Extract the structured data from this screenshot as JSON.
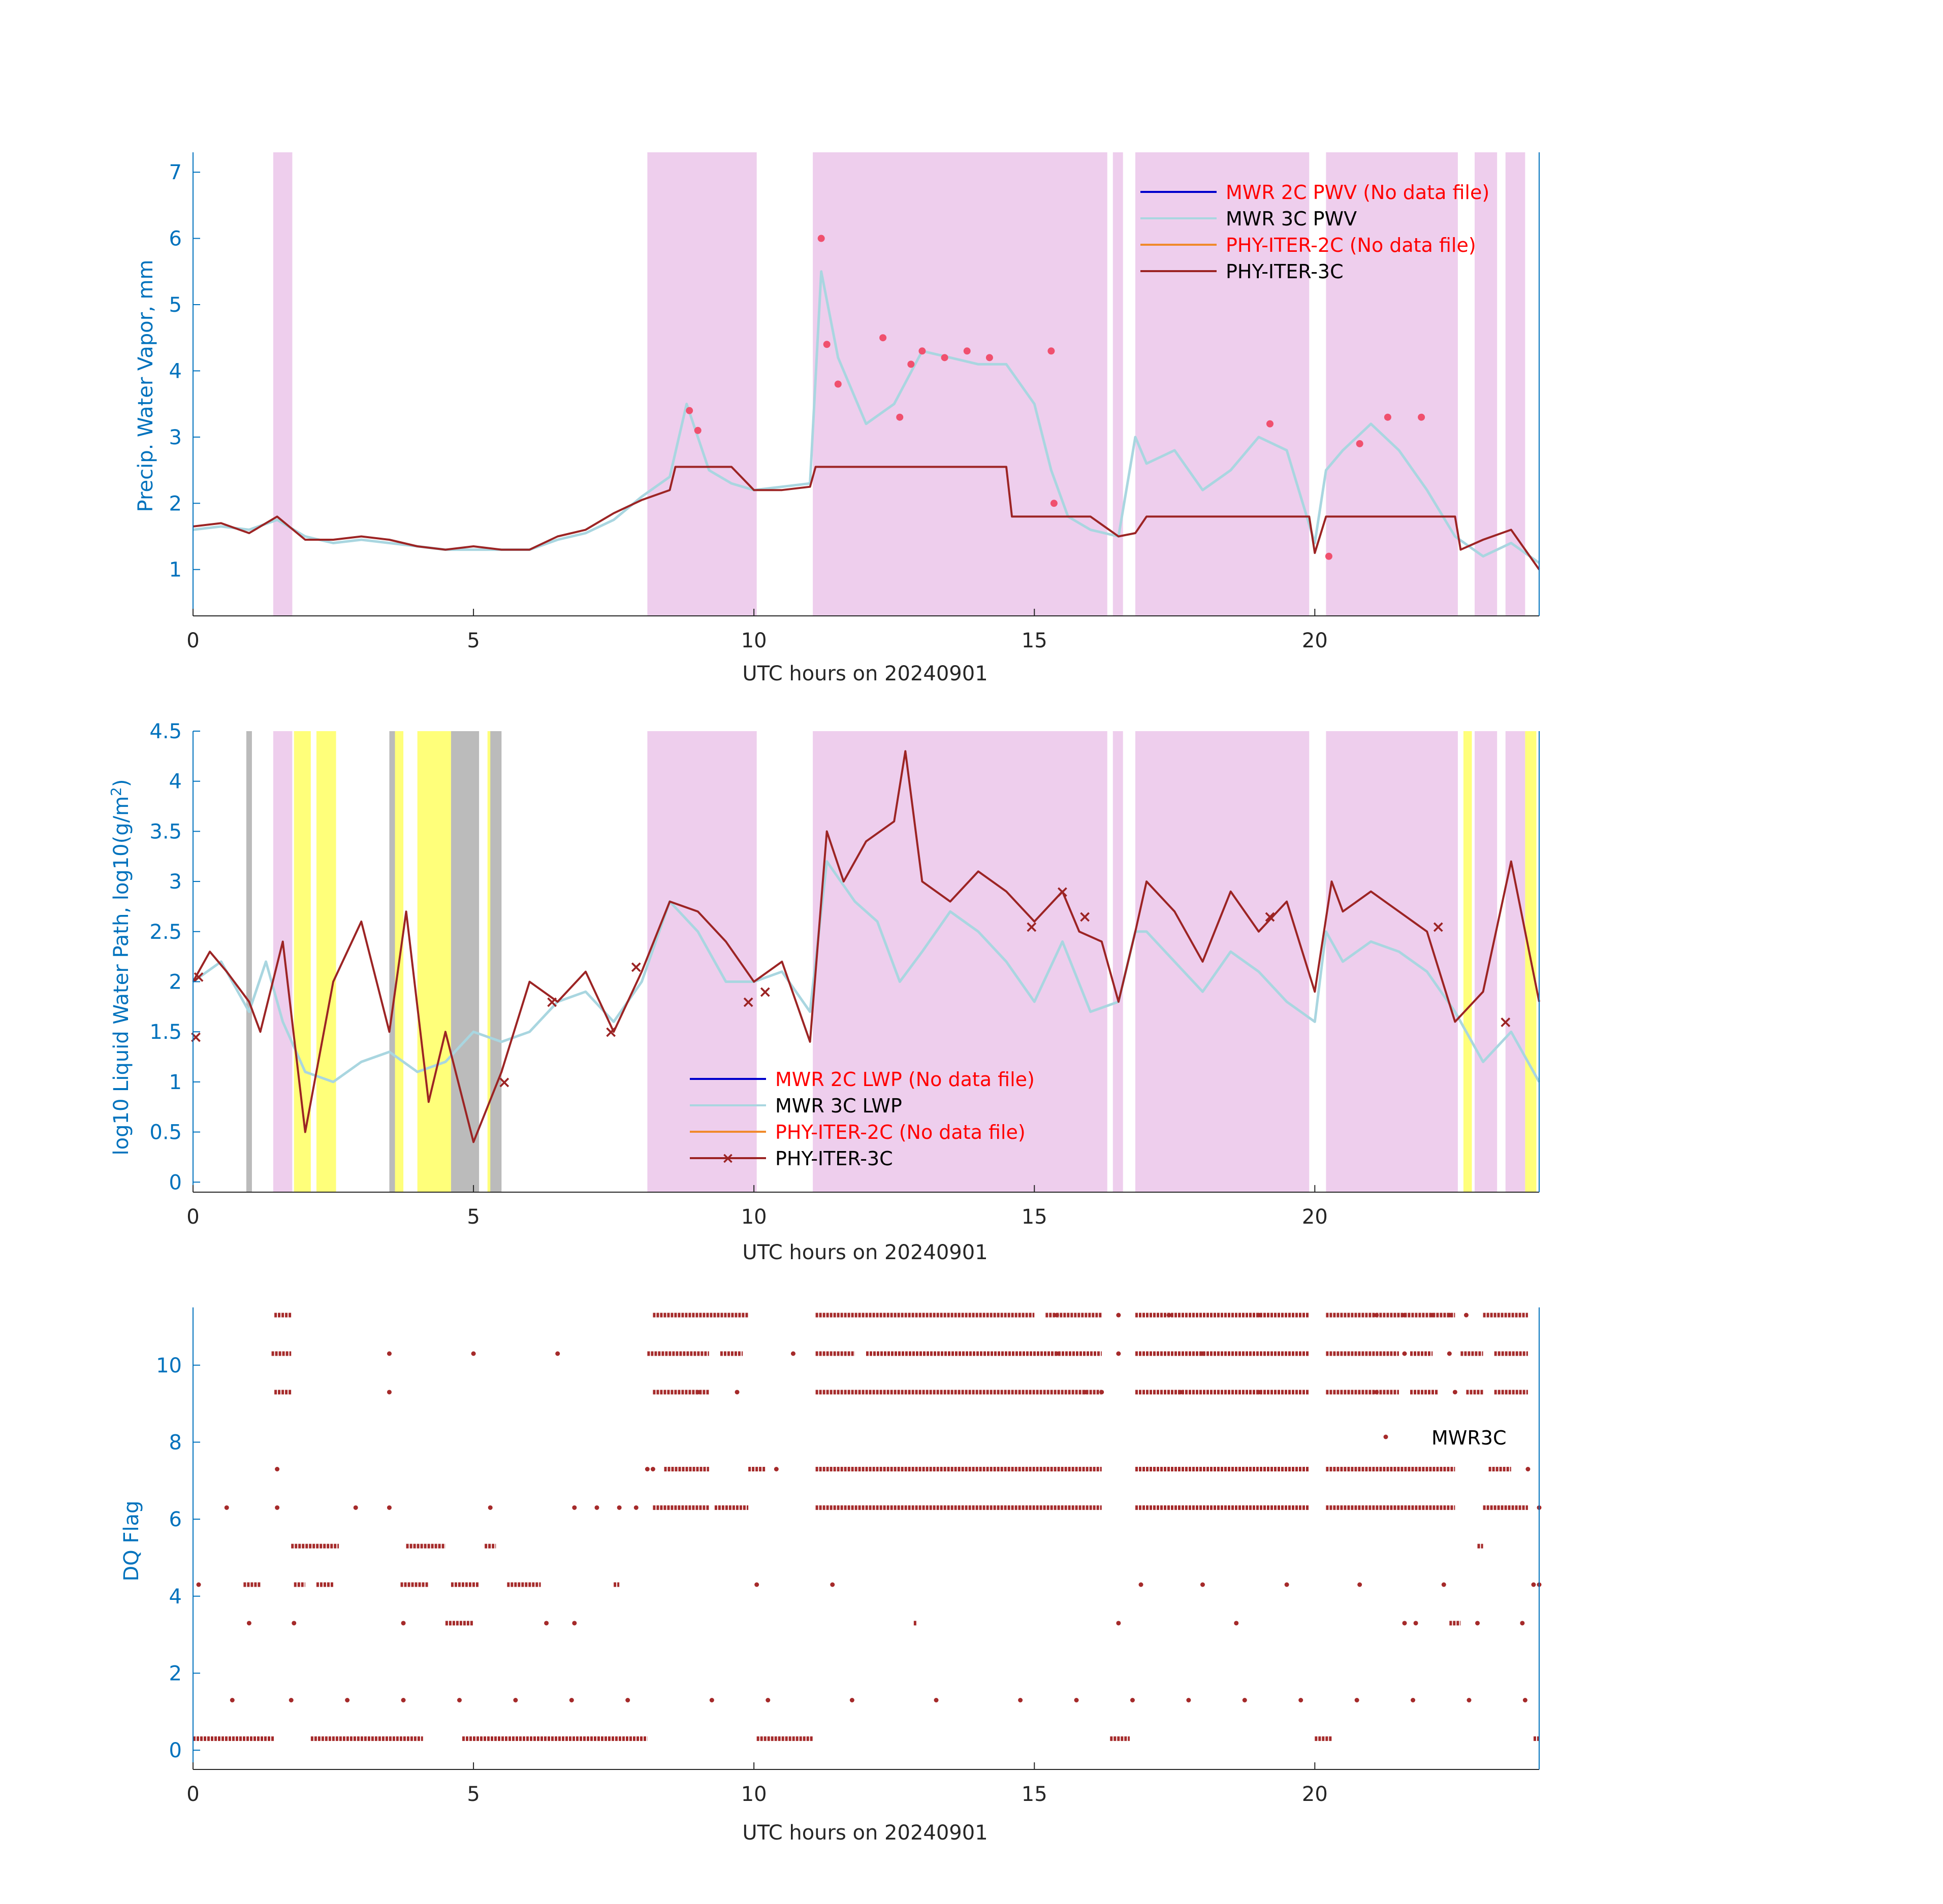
{
  "colors": {
    "axis": "#0072BD",
    "axis_black": "#262626",
    "shade_pink": "#eeceed",
    "shade_yellow": "#ffff7a",
    "shade_gray": "#bbbbbb",
    "mwr2c": "#0000cc",
    "mwr3c": "#a9d6e0",
    "phy2c": "#f08a2c",
    "phy3c": "#9c2424",
    "flag_red": "#f0506e",
    "nofile_red": "#ff0000",
    "dq": "#a52a2a"
  },
  "chart_data": [
    {
      "id": "pwv",
      "type": "line",
      "xlabel": "UTC hours on 20240901",
      "ylabel": "Precip. Water Vapor, mm",
      "xlim": [
        0,
        24
      ],
      "ylim": [
        0.3,
        7.3
      ],
      "xticks": [
        0,
        5,
        10,
        15,
        20
      ],
      "yticks": [
        1,
        2,
        3,
        4,
        5,
        6,
        7
      ],
      "shaded_intervals": [
        [
          1.43,
          1.77
        ],
        [
          8.1,
          10.05
        ],
        [
          11.05,
          16.3
        ],
        [
          16.4,
          16.58
        ],
        [
          16.8,
          19.9
        ],
        [
          20.2,
          22.55
        ],
        [
          22.85,
          23.25
        ],
        [
          23.4,
          23.75
        ]
      ],
      "legend": [
        {
          "label": "MWR 2C PWV (No data file)",
          "missing_file": true
        },
        {
          "label": "MWR 3C PWV",
          "missing_file": false
        },
        {
          "label": "PHY-ITER-2C (No data file)",
          "missing_file": true
        },
        {
          "label": "PHY-ITER-3C",
          "missing_file": false
        }
      ],
      "series": [
        {
          "name": "MWR 3C PWV",
          "x": [
            0,
            0.5,
            1,
            1.5,
            2,
            2.5,
            3,
            3.5,
            4,
            4.5,
            5,
            5.5,
            6,
            6.5,
            7,
            7.5,
            8,
            8.5,
            8.8,
            9.2,
            9.6,
            10,
            10.5,
            11,
            11.2,
            11.5,
            12,
            12.5,
            13,
            13.5,
            14,
            14.5,
            15,
            15.3,
            15.6,
            16,
            16.5,
            16.8,
            17,
            17.5,
            18,
            18.5,
            19,
            19.5,
            20,
            20.2,
            20.5,
            21,
            21.5,
            22,
            22.5,
            23,
            23.5,
            24
          ],
          "y": [
            1.6,
            1.65,
            1.6,
            1.75,
            1.5,
            1.4,
            1.45,
            1.4,
            1.35,
            1.3,
            1.3,
            1.3,
            1.3,
            1.45,
            1.55,
            1.75,
            2.1,
            2.4,
            3.5,
            2.5,
            2.3,
            2.2,
            2.25,
            2.3,
            5.5,
            4.2,
            3.2,
            3.5,
            4.3,
            4.2,
            4.1,
            4.1,
            3.5,
            2.5,
            1.8,
            1.6,
            1.5,
            3.0,
            2.6,
            2.8,
            2.2,
            2.5,
            3.0,
            2.8,
            1.4,
            2.5,
            2.8,
            3.2,
            2.8,
            2.2,
            1.5,
            1.2,
            1.4,
            1.1
          ]
        },
        {
          "name": "PHY-ITER-3C",
          "x": [
            0,
            0.5,
            1,
            1.5,
            2,
            2.5,
            3,
            3.5,
            4,
            4.5,
            5,
            5.5,
            6,
            6.5,
            7,
            7.5,
            8,
            8.5,
            8.6,
            9,
            9.5,
            9.6,
            10,
            10.5,
            11,
            11.1,
            14.5,
            14.6,
            16,
            16.5,
            16.8,
            17,
            19.9,
            20,
            20.2,
            22.5,
            22.6,
            23,
            23.5,
            24
          ],
          "y": [
            1.65,
            1.7,
            1.55,
            1.8,
            1.45,
            1.45,
            1.5,
            1.45,
            1.35,
            1.3,
            1.35,
            1.3,
            1.3,
            1.5,
            1.6,
            1.85,
            2.05,
            2.2,
            2.55,
            2.55,
            2.55,
            2.55,
            2.2,
            2.2,
            2.25,
            2.55,
            2.55,
            1.8,
            1.8,
            1.5,
            1.55,
            1.8,
            1.8,
            1.25,
            1.8,
            1.8,
            1.3,
            1.45,
            1.6,
            1.0
          ]
        },
        {
          "name": "flagged",
          "x": [
            8.85,
            9.0,
            11.2,
            11.3,
            11.5,
            12.3,
            12.6,
            12.8,
            13.0,
            13.4,
            13.8,
            14.2,
            15.3,
            15.35,
            19.2,
            20.25,
            20.8,
            21.3,
            21.9
          ],
          "y": [
            3.4,
            3.1,
            6.0,
            4.4,
            3.8,
            4.5,
            3.3,
            4.1,
            4.3,
            4.2,
            4.3,
            4.2,
            4.3,
            2.0,
            3.2,
            1.2,
            2.9,
            3.3,
            3.3
          ]
        }
      ]
    },
    {
      "id": "lwp",
      "type": "line",
      "xlabel": "UTC hours on 20240901",
      "ylabel": "log10 Liquid Water Path, log10(g/m",
      "ylabel_sup": "2",
      "ylabel_end": ")",
      "xlim": [
        0,
        24
      ],
      "ylim": [
        -0.1,
        4.5
      ],
      "xticks": [
        0,
        5,
        10,
        15,
        20
      ],
      "yticks": [
        0,
        0.5,
        1,
        1.5,
        2,
        2.5,
        3,
        3.5,
        4,
        4.5
      ],
      "ytick_labels": [
        "0",
        "0.5",
        "1",
        "1.5",
        "2",
        "2.5",
        "3",
        "3.5",
        "4",
        "4.5"
      ],
      "shaded_intervals": [
        [
          1.43,
          1.77
        ],
        [
          8.1,
          10.05
        ],
        [
          11.05,
          16.3
        ],
        [
          16.4,
          16.58
        ],
        [
          16.8,
          19.9
        ],
        [
          20.2,
          22.55
        ],
        [
          22.85,
          23.25
        ],
        [
          23.4,
          23.75
        ]
      ],
      "yellow_intervals": [
        [
          1.8,
          2.1
        ],
        [
          2.2,
          2.55
        ],
        [
          3.55,
          3.75
        ],
        [
          4.0,
          4.6
        ],
        [
          5.25,
          5.35
        ],
        [
          22.65,
          22.8
        ],
        [
          23.75,
          23.95
        ]
      ],
      "gray_intervals": [
        [
          4.6,
          5.1
        ],
        [
          5.3,
          5.5
        ],
        [
          0.95,
          1.05
        ],
        [
          3.5,
          3.6
        ]
      ],
      "legend": [
        {
          "label": "MWR 2C LWP (No data file)",
          "missing_file": true
        },
        {
          "label": "MWR 3C LWP",
          "missing_file": false
        },
        {
          "label": "PHY-ITER-2C (No data file)",
          "missing_file": true
        },
        {
          "label": "PHY-ITER-3C",
          "missing_file": false
        }
      ],
      "series": [
        {
          "name": "MWR 3C LWP",
          "x": [
            0,
            0.5,
            1,
            1.3,
            1.6,
            2,
            2.5,
            3,
            3.5,
            4,
            4.5,
            5,
            5.5,
            6,
            6.5,
            7,
            7.5,
            8,
            8.5,
            9,
            9.5,
            10,
            10.5,
            11,
            11.3,
            11.8,
            12.2,
            12.6,
            13,
            13.5,
            14,
            14.5,
            15,
            15.5,
            16,
            16.5,
            16.8,
            17,
            17.5,
            18,
            18.5,
            19,
            19.5,
            20,
            20.2,
            20.5,
            21,
            21.5,
            22,
            22.5,
            23,
            23.5,
            24
          ],
          "y": [
            2.0,
            2.2,
            1.7,
            2.2,
            1.6,
            1.1,
            1.0,
            1.2,
            1.3,
            1.1,
            1.2,
            1.5,
            1.4,
            1.5,
            1.8,
            1.9,
            1.6,
            2.0,
            2.8,
            2.5,
            2.0,
            2.0,
            2.1,
            1.7,
            3.2,
            2.8,
            2.6,
            2.0,
            2.3,
            2.7,
            2.5,
            2.2,
            1.8,
            2.4,
            1.7,
            1.8,
            2.5,
            2.5,
            2.2,
            1.9,
            2.3,
            2.1,
            1.8,
            1.6,
            2.5,
            2.2,
            2.4,
            2.3,
            2.1,
            1.7,
            1.2,
            1.5,
            1.0
          ]
        },
        {
          "name": "PHY-ITER-3C",
          "x": [
            0,
            0.3,
            0.6,
            1.0,
            1.2,
            1.6,
            2.0,
            2.5,
            3.0,
            3.5,
            3.8,
            4.2,
            4.5,
            5.0,
            5.5,
            6.0,
            6.5,
            7.0,
            7.5,
            8.0,
            8.5,
            9.0,
            9.5,
            10.0,
            10.5,
            11.0,
            11.3,
            11.6,
            12.0,
            12.5,
            12.7,
            13.0,
            13.5,
            14.0,
            14.5,
            15.0,
            15.5,
            15.8,
            16.2,
            16.5,
            16.8,
            17.0,
            17.5,
            18.0,
            18.5,
            19.0,
            19.5,
            20.0,
            20.3,
            20.5,
            21.0,
            21.5,
            22.0,
            22.5,
            23.0,
            23.5,
            24.0
          ],
          "y": [
            2.0,
            2.3,
            2.1,
            1.8,
            1.5,
            2.4,
            0.5,
            2.0,
            2.6,
            1.5,
            2.7,
            0.8,
            1.5,
            0.4,
            1.1,
            2.0,
            1.8,
            2.1,
            1.5,
            2.1,
            2.8,
            2.7,
            2.4,
            2.0,
            2.2,
            1.4,
            3.5,
            3.0,
            3.4,
            3.6,
            4.3,
            3.0,
            2.8,
            3.1,
            2.9,
            2.6,
            2.9,
            2.5,
            2.4,
            1.8,
            2.5,
            3.0,
            2.7,
            2.2,
            2.9,
            2.5,
            2.8,
            1.9,
            3.0,
            2.7,
            2.9,
            2.7,
            2.5,
            1.6,
            1.9,
            3.2,
            1.8
          ]
        },
        {
          "name": "markers",
          "x": [
            0.05,
            0.1,
            5.55,
            6.4,
            7.45,
            7.9,
            9.9,
            10.2,
            14.95,
            15.5,
            15.9,
            19.2,
            22.2,
            23.4
          ],
          "y": [
            1.45,
            2.05,
            1.0,
            1.8,
            1.5,
            2.15,
            1.8,
            1.9,
            2.55,
            2.9,
            2.65,
            2.65,
            2.55,
            1.6
          ]
        }
      ]
    },
    {
      "id": "dq",
      "type": "scatter",
      "xlabel": "UTC hours on 20240901",
      "ylabel": "DQ Flag",
      "xlim": [
        0,
        24
      ],
      "ylim": [
        -0.5,
        11.5
      ],
      "xticks": [
        0,
        5,
        10,
        15,
        20
      ],
      "yticks": [
        0,
        2,
        4,
        6,
        8,
        10
      ],
      "legend": [
        {
          "label": "MWR3C",
          "missing_file": false
        }
      ],
      "rows": [
        {
          "flag": 0.3,
          "segments": [
            [
              0,
              1.45
            ],
            [
              2.1,
              4.1
            ],
            [
              4.8,
              8.1
            ],
            [
              10.05,
              11.05
            ],
            [
              16.35,
              16.7
            ],
            [
              20.0,
              20.3
            ],
            [
              23.9,
              24
            ]
          ]
        },
        {
          "flag": 1.3,
          "segments": []
        },
        {
          "flag": 3.3,
          "segments": [
            [
              4.5,
              5.0
            ],
            [
              12.85,
              12.9
            ],
            [
              22.4,
              22.6
            ]
          ]
        },
        {
          "flag": 4.3,
          "segments": [
            [
              0.9,
              1.2
            ],
            [
              1.8,
              2.0
            ],
            [
              2.2,
              2.5
            ],
            [
              3.7,
              4.2
            ],
            [
              4.6,
              5.1
            ],
            [
              5.6,
              6.2
            ],
            [
              7.5,
              7.6
            ]
          ]
        },
        {
          "flag": 5.3,
          "segments": [
            [
              1.75,
              2.6
            ],
            [
              3.8,
              4.5
            ],
            [
              5.2,
              5.4
            ],
            [
              22.9,
              23.0
            ]
          ]
        },
        {
          "flag": 6.3,
          "segments": [
            [
              8.2,
              9.2
            ],
            [
              9.3,
              9.9
            ],
            [
              11.1,
              16.2
            ],
            [
              16.8,
              19.9
            ],
            [
              20.2,
              22.5
            ],
            [
              23.0,
              23.8
            ]
          ]
        },
        {
          "flag": 7.3,
          "segments": [
            [
              8.4,
              9.2
            ],
            [
              9.9,
              10.2
            ],
            [
              11.1,
              16.2
            ],
            [
              16.8,
              19.9
            ],
            [
              20.2,
              22.5
            ],
            [
              23.1,
              23.5
            ]
          ]
        },
        {
          "flag": 9.3,
          "segments": [
            [
              1.45,
              1.75
            ],
            [
              8.2,
              9.2
            ],
            [
              11.1,
              16.2
            ],
            [
              16.8,
              19.9
            ],
            [
              20.2,
              21.5
            ],
            [
              21.7,
              22.2
            ],
            [
              22.7,
              23.0
            ],
            [
              23.2,
              23.8
            ]
          ]
        },
        {
          "flag": 10.3,
          "segments": [
            [
              1.4,
              1.75
            ],
            [
              8.1,
              9.2
            ],
            [
              9.4,
              9.8
            ],
            [
              11.1,
              11.8
            ],
            [
              12.0,
              16.2
            ],
            [
              16.8,
              19.9
            ],
            [
              20.2,
              21.5
            ],
            [
              21.7,
              22.1
            ],
            [
              22.6,
              23.0
            ],
            [
              23.2,
              23.8
            ]
          ]
        },
        {
          "flag": 11.3,
          "segments": [
            [
              1.45,
              1.75
            ],
            [
              8.2,
              9.9
            ],
            [
              11.1,
              15.0
            ],
            [
              15.2,
              16.2
            ],
            [
              16.8,
              19.9
            ],
            [
              20.2,
              22.5
            ],
            [
              23.0,
              23.8
            ]
          ]
        }
      ],
      "isolated": [
        {
          "flag": 1.3,
          "x": [
            0.7,
            1.75,
            2.75,
            3.75,
            4.75,
            5.75,
            6.75,
            7.75,
            9.25,
            10.25,
            11.75,
            13.25,
            14.75,
            15.75,
            16.75,
            17.75,
            18.75,
            19.75,
            20.75,
            21.75,
            22.75,
            23.75
          ]
        },
        {
          "flag": 4.3,
          "x": [
            0.1,
            10.05,
            11.4,
            16.9,
            18.0,
            19.5,
            20.8,
            22.3,
            23.9,
            24
          ]
        },
        {
          "flag": 3.3,
          "x": [
            1.0,
            1.8,
            3.75,
            6.3,
            6.8,
            16.5,
            18.6,
            21.6,
            21.8,
            22.9,
            23.7
          ]
        },
        {
          "flag": 6.3,
          "x": [
            0.6,
            1.5,
            2.9,
            3.5,
            5.3,
            6.8,
            7.2,
            7.6,
            7.9,
            24
          ]
        },
        {
          "flag": 7.3,
          "x": [
            1.5,
            8.1,
            8.2,
            10.4,
            23.8
          ]
        },
        {
          "flag": 9.3,
          "x": [
            3.5,
            9.0,
            9.7,
            15.9,
            16.2,
            17.6,
            19.0,
            21.1,
            22.5
          ]
        },
        {
          "flag": 10.3,
          "x": [
            3.5,
            5.0,
            6.5,
            10.7,
            15.4,
            16.5,
            18.0,
            21.6,
            22.4
          ]
        },
        {
          "flag": 11.3,
          "x": [
            15.4,
            16.5,
            17.4,
            19.0,
            21.1,
            21.6,
            22.1,
            22.4,
            22.7
          ]
        }
      ]
    }
  ]
}
